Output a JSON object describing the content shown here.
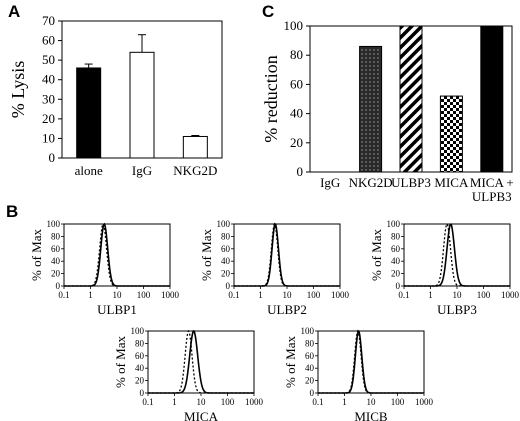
{
  "panels": {
    "A": "A",
    "B": "B",
    "C": "C"
  },
  "chart_data": [
    {
      "id": "A",
      "type": "bar",
      "ylabel": "% Lysis",
      "ylim": [
        0,
        70
      ],
      "yticks": [
        0,
        10,
        20,
        30,
        40,
        50,
        60,
        70
      ],
      "categories": [
        "alone",
        "IgG",
        "NKG2D"
      ],
      "values": [
        46,
        54,
        11
      ],
      "errors": [
        2,
        9,
        0.5
      ],
      "fills": [
        "black",
        "white",
        "white"
      ]
    },
    {
      "id": "C",
      "type": "bar",
      "ylabel": "% reduction",
      "ylim": [
        0,
        100
      ],
      "yticks": [
        0,
        20,
        40,
        60,
        80,
        100
      ],
      "categories": [
        "IgG",
        "NKG2D",
        "ULBP3",
        "MICA",
        "MICA +\nULPB3"
      ],
      "values": [
        0,
        86,
        100,
        52,
        100
      ],
      "patterns": [
        "none",
        "dots-dark",
        "diagonal",
        "checker",
        "solid"
      ]
    },
    {
      "id": "B",
      "type": "line",
      "xscale": "log",
      "xticks": [
        "0.1",
        "1",
        "10",
        "100",
        "1000"
      ],
      "yticks": [
        0,
        20,
        40,
        60,
        80,
        100
      ],
      "ylabel": "% of Max",
      "histograms": [
        {
          "xlabel": "ULBP1",
          "solid_peak": 3.3,
          "dotted_peak": 3.0,
          "solid_width": 0.13,
          "dotted_width": 0.13
        },
        {
          "xlabel": "ULBP2",
          "solid_peak": 3.6,
          "dotted_peak": 3.4,
          "solid_width": 0.12,
          "dotted_width": 0.12
        },
        {
          "xlabel": "ULBP3",
          "solid_peak": 5.8,
          "dotted_peak": 4.2,
          "solid_width": 0.14,
          "dotted_width": 0.13
        },
        {
          "xlabel": "MICA",
          "solid_peak": 5.3,
          "dotted_peak": 3.4,
          "solid_width": 0.15,
          "dotted_width": 0.13
        },
        {
          "xlabel": "MICB",
          "solid_peak": 3.4,
          "dotted_peak": 3.2,
          "solid_width": 0.12,
          "dotted_width": 0.12
        }
      ]
    }
  ]
}
